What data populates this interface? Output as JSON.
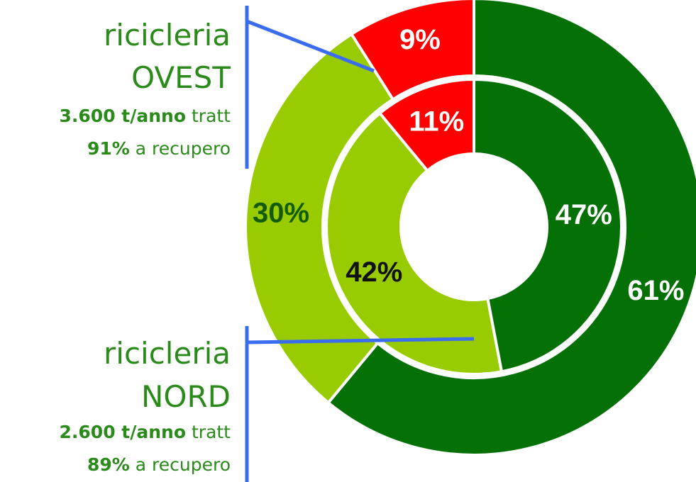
{
  "chart_data": {
    "type": "donut",
    "colors": [
      "#057005",
      "#99cc00",
      "#ff0000"
    ],
    "series": [
      {
        "values": [
          61,
          30,
          9
        ],
        "value_labels": [
          "61%",
          "30%",
          "9%"
        ],
        "label_colors": [
          "#ffffff",
          "#145a00",
          "#ffffff"
        ]
      },
      {
        "values": [
          47,
          42,
          11
        ],
        "value_labels": [
          "47%",
          "42%",
          "11%"
        ],
        "label_colors": [
          "#ffffff",
          "#111111",
          "#ffffff"
        ]
      }
    ],
    "annotations": [
      {
        "title": "ricicleria",
        "subtitle": "OVEST",
        "amount": "3.600 t/anno",
        "amount_suffix": "tratt",
        "rate": "91%",
        "rate_suffix": "a recupero"
      },
      {
        "title": "ricicleria",
        "subtitle": "NORD",
        "amount": "2.600 t/anno",
        "amount_suffix": "tratt",
        "rate": "89%",
        "rate_suffix": "a recupero"
      }
    ]
  }
}
